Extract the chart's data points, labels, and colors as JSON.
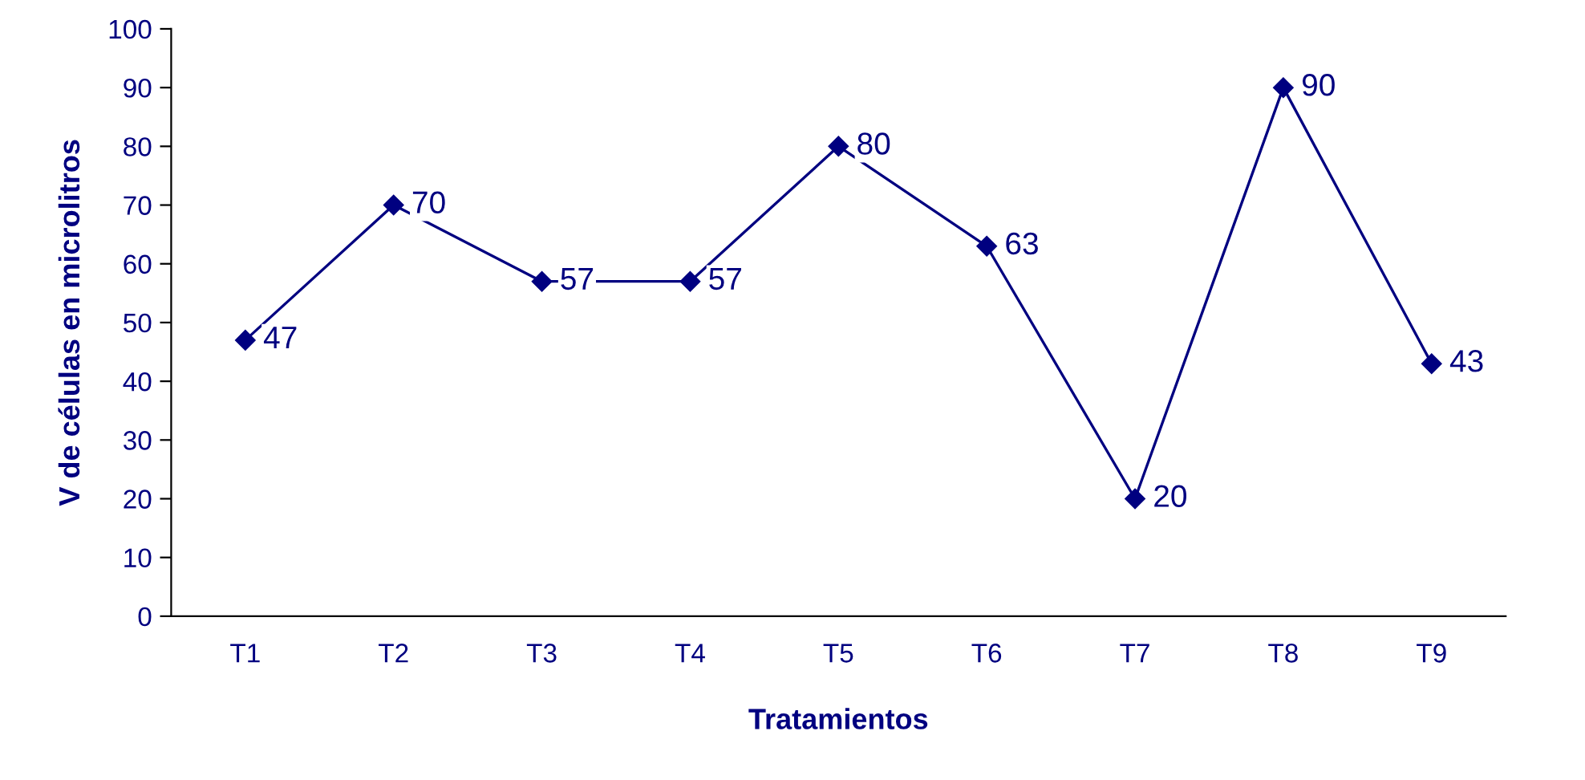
{
  "chart_data": {
    "type": "line",
    "xlabel": "Tratamientos",
    "ylabel": "V de células en microlitros",
    "categories": [
      "T1",
      "T2",
      "T3",
      "T4",
      "T5",
      "T6",
      "T7",
      "T8",
      "T9"
    ],
    "series": [
      {
        "color": "#000080",
        "values": [
          47,
          70,
          57,
          57,
          80,
          63,
          20,
          90,
          43
        ]
      }
    ],
    "ylim": [
      0,
      100
    ],
    "yticks": [
      0,
      10,
      20,
      30,
      40,
      50,
      60,
      70,
      80,
      90,
      100
    ],
    "marker": "diamond",
    "line_style": "solid",
    "data_labels": true,
    "grid": false
  }
}
